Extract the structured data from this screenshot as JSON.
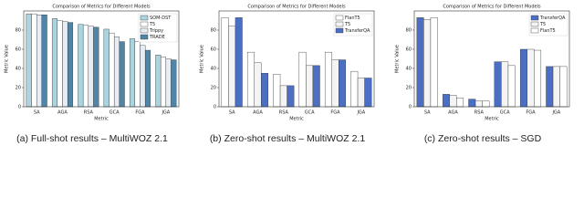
{
  "chart_data": [
    {
      "type": "bar",
      "title": "Comparison of Metrics for Different Models",
      "xlabel": "Metric",
      "ylabel": "Metric Value",
      "caption": "(a) Full-shot results – MultiWOZ 2.1",
      "categories": [
        "SA",
        "AGA",
        "RSA",
        "GCA",
        "FGA",
        "JGA"
      ],
      "series": [
        {
          "name": "SOM-DST",
          "color": "#a9d4e0",
          "values": [
            97,
            92,
            86,
            81,
            71,
            54
          ]
        },
        {
          "name": "T5",
          "color": "#ffffff",
          "values": [
            97,
            90,
            85,
            77,
            68,
            52
          ]
        },
        {
          "name": "Trippy",
          "color": "#e6edf4",
          "values": [
            96,
            89,
            84,
            73,
            64,
            50
          ]
        },
        {
          "name": "TRADE",
          "color": "#4f86a8",
          "values": [
            96,
            88,
            83,
            68,
            59,
            49
          ]
        }
      ],
      "ylim": [
        0,
        100
      ],
      "yticks": [
        0,
        20,
        40,
        60,
        80
      ],
      "legend": "upper right"
    },
    {
      "type": "bar",
      "title": "Comparison of Metrics for Different Models",
      "xlabel": "Metric",
      "ylabel": "Metric Value",
      "caption": "(b) Zero-shot results – MultiWOZ 2.1",
      "categories": [
        "SA",
        "AGA",
        "RSA",
        "GCA",
        "FGA",
        "JGA"
      ],
      "series": [
        {
          "name": "FlanT5",
          "color": "#ffffff",
          "values": [
            93,
            57,
            34,
            57,
            57,
            37
          ]
        },
        {
          "name": "T5",
          "color": "#f4f4f4",
          "values": [
            84,
            46,
            22,
            43,
            49,
            30
          ]
        },
        {
          "name": "TransferQA",
          "color": "#4a6fc4",
          "values": [
            93,
            35,
            22,
            43,
            49,
            30
          ]
        }
      ],
      "ylim": [
        0,
        100
      ],
      "yticks": [
        0,
        20,
        40,
        60,
        80
      ],
      "legend": "upper right"
    },
    {
      "type": "bar",
      "title": "Comparison of Metrics for Different Models",
      "xlabel": "Metric",
      "ylabel": "Metric Value",
      "caption": "(c) Zero-shot results – SGD",
      "categories": [
        "SA",
        "AGA",
        "RSA",
        "GCA",
        "FGA",
        "JGA"
      ],
      "series": [
        {
          "name": "TransferQA",
          "color": "#4a6fc4",
          "values": [
            93,
            13,
            8,
            47,
            60,
            42
          ]
        },
        {
          "name": "T5",
          "color": "#f4f4f4",
          "values": [
            91,
            12,
            6,
            47,
            60,
            42
          ]
        },
        {
          "name": "FlanT5",
          "color": "#ffffff",
          "values": [
            93,
            9,
            6,
            43,
            59,
            42
          ]
        }
      ],
      "ylim": [
        0,
        100
      ],
      "yticks": [
        0,
        20,
        40,
        60,
        80
      ],
      "legend": "upper right"
    }
  ]
}
